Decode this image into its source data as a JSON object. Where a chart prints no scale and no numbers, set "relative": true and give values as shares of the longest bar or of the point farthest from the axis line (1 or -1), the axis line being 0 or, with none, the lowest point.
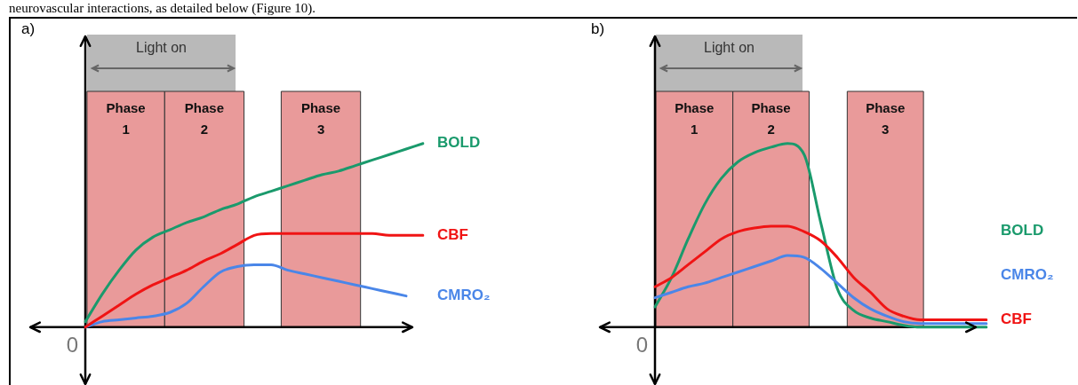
{
  "chart_data": [
    {
      "type": "line",
      "title": "a)",
      "relative": true,
      "categories": [
        null,
        null,
        null,
        null,
        null,
        null,
        null,
        null,
        null,
        null,
        null,
        null,
        null,
        null,
        null,
        null,
        null,
        null,
        null,
        null,
        null
      ],
      "series": [
        {
          "name": "BOLD",
          "color": "#1a9a6c",
          "values": [
            0.03,
            0.18,
            0.31,
            0.42,
            0.49,
            0.53,
            0.57,
            0.6,
            0.64,
            0.67,
            0.71,
            0.74,
            0.77,
            0.8,
            0.83,
            0.85,
            0.88,
            0.91,
            0.94,
            0.97,
            1.0
          ]
        },
        {
          "name": "CBF",
          "color": "#f01414",
          "values": [
            0,
            0.06,
            0.12,
            0.18,
            0.23,
            0.27,
            0.31,
            0.36,
            0.4,
            0.45,
            0.5,
            0.51,
            0.51,
            0.51,
            0.51,
            0.51,
            0.51,
            0.51,
            0.5,
            0.5,
            0.5
          ]
        },
        {
          "name": "CMRO₂",
          "color": "#4a86e8",
          "values": [
            0,
            0.03,
            0.04,
            0.05,
            0.06,
            0.08,
            0.13,
            0.22,
            0.3,
            0.33,
            0.34,
            0.34,
            0.31,
            0.29,
            0.27,
            0.25,
            0.23,
            0.21,
            0.19,
            0.17,
            null
          ]
        }
      ],
      "annotations": [
        "Light on",
        "Phase 1",
        "Phase 2",
        "Phase 3",
        "0",
        "neurovascular interactions, as detailed below (Figure 10)."
      ],
      "legend": false,
      "marker": "none",
      "line_style": "solid"
    },
    {
      "type": "line",
      "title": "b)",
      "relative": true,
      "categories": [
        null,
        null,
        null,
        null,
        null,
        null,
        null,
        null,
        null,
        null,
        null,
        null,
        null,
        null,
        null,
        null,
        null,
        null,
        null,
        null,
        null
      ],
      "series": [
        {
          "name": "CBF",
          "color": "#f01414",
          "values": [
            0.22,
            0.27,
            0.34,
            0.41,
            0.48,
            0.52,
            0.54,
            0.55,
            0.55,
            0.52,
            0.47,
            0.38,
            0.27,
            0.19,
            0.1,
            0.06,
            0.04,
            0.04,
            0.04,
            0.04,
            0.04
          ]
        },
        {
          "name": "CMRO₂",
          "color": "#4a86e8",
          "values": [
            0.16,
            0.19,
            0.22,
            0.24,
            0.27,
            0.3,
            0.33,
            0.36,
            0.39,
            0.38,
            0.32,
            0.24,
            0.16,
            0.1,
            0.06,
            0.03,
            0.02,
            0.02,
            0.02,
            0.02,
            0.02
          ]
        },
        {
          "name": "BOLD",
          "color": "#1a9a6c",
          "values": [
            0.11,
            0.27,
            0.48,
            0.67,
            0.81,
            0.9,
            0.95,
            0.98,
            1.0,
            0.94,
            0.57,
            0.21,
            0.09,
            0.05,
            0.03,
            0.01,
            0,
            0,
            0,
            0,
            0
          ]
        }
      ],
      "annotations": [
        "Light on",
        "Phase 1",
        "Phase 2",
        "Phase 3",
        "0"
      ],
      "legend": false,
      "marker": "none",
      "line_style": "solid"
    }
  ]
}
